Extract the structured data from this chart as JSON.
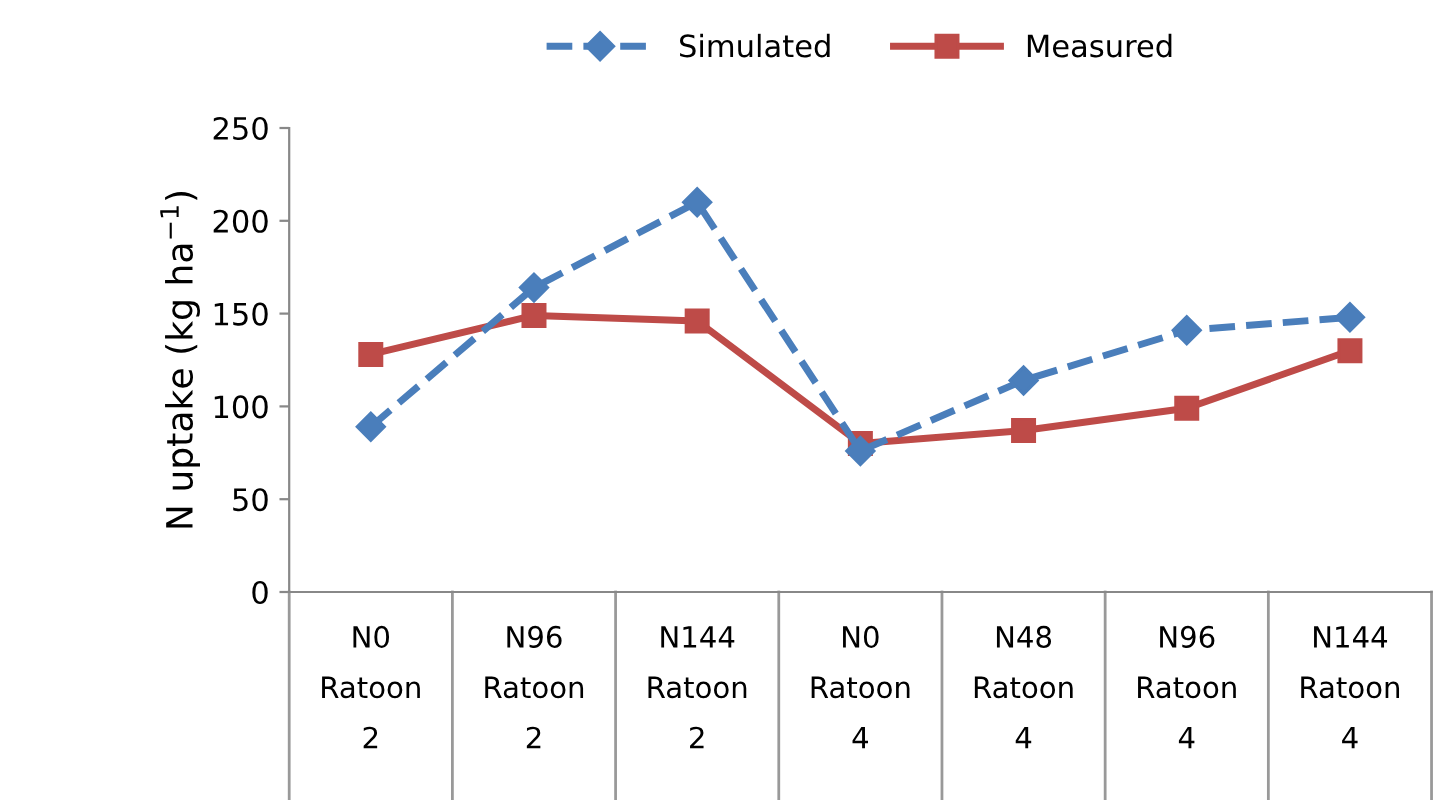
{
  "chart_data": {
    "type": "line",
    "ylabel": "N uptake (kg ha$^{−1}$)",
    "categories": [
      "N0\nRatoon\n2",
      "N96\nRatoon\n2",
      "N144\nRatoon\n2",
      "N0\nRatoon\n4",
      "N48\nRatoon\n4",
      "N96\nRatoon\n4",
      "N144\nRatoon\n4"
    ],
    "series": [
      {
        "name": "Simulated",
        "color": "#4a7ebb",
        "marker": "diamond",
        "line_style": "dashed",
        "values": [
          89,
          164,
          210,
          76,
          114,
          141,
          148
        ]
      },
      {
        "name": "Measured",
        "color": "#be4b48",
        "marker": "square",
        "line_style": "solid",
        "values": [
          128,
          149,
          146,
          80,
          87,
          99,
          130
        ]
      }
    ],
    "ylim": [
      0,
      250
    ],
    "yticks": [
      0,
      50,
      100,
      150,
      200,
      250
    ],
    "grid": false,
    "legend": "top"
  }
}
